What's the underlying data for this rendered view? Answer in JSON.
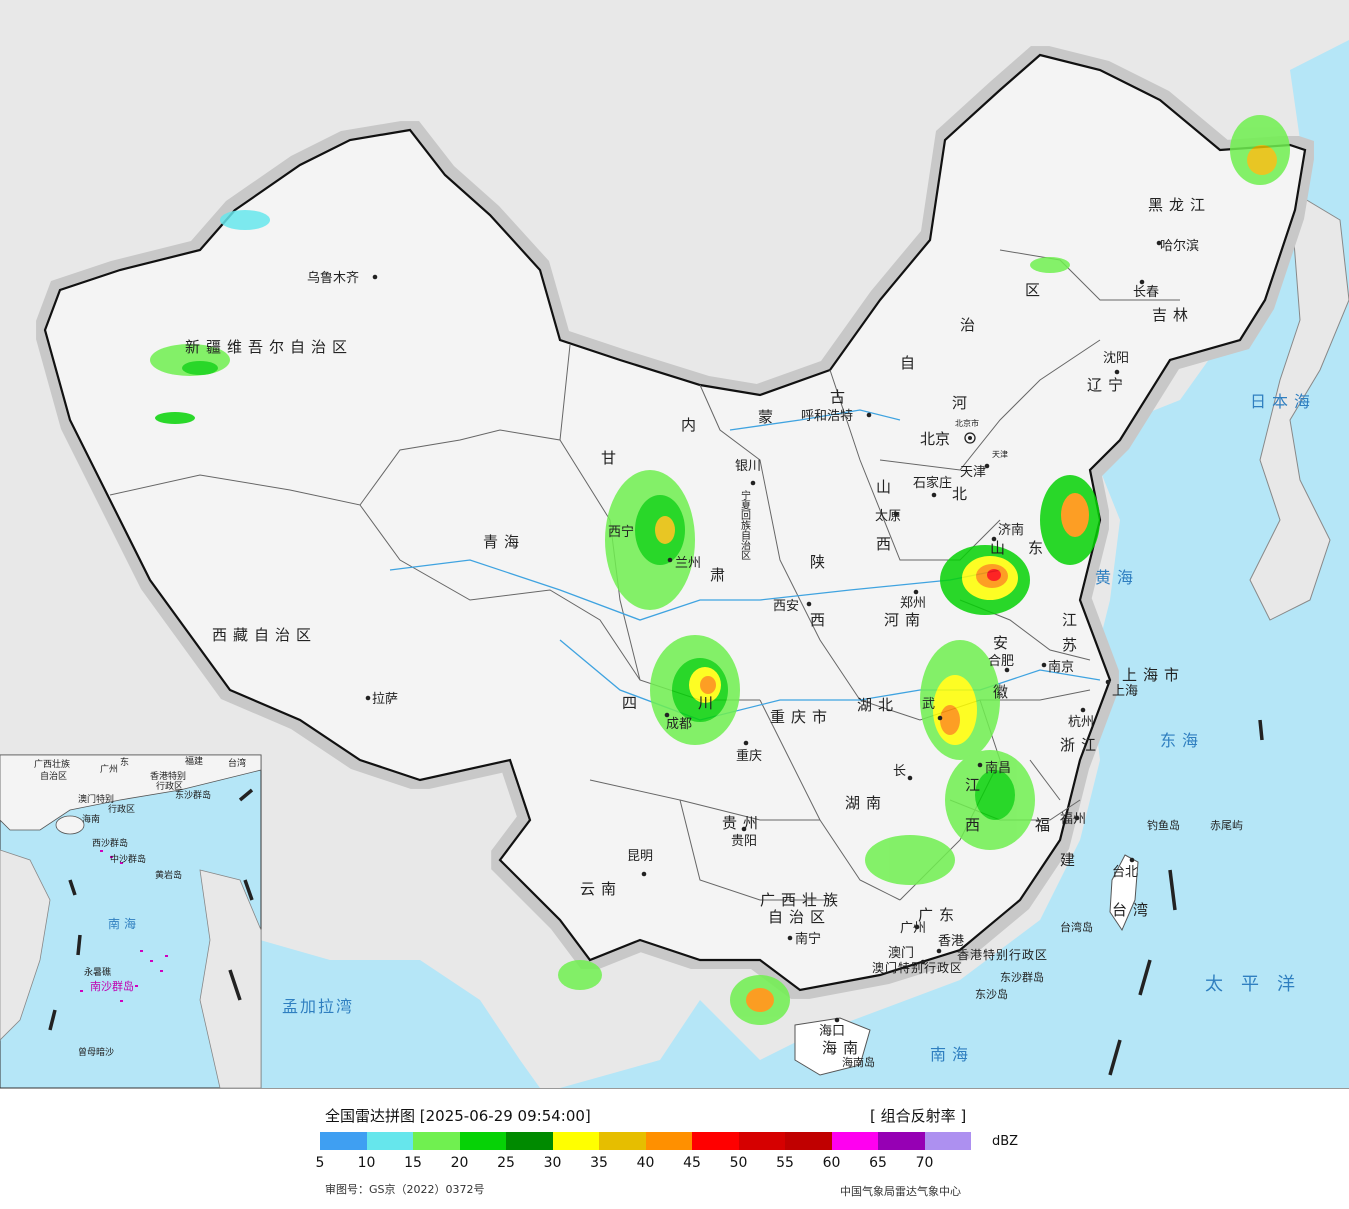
{
  "map": {
    "provinces": [
      {
        "key": "xinjiang",
        "name": "新疆维吾尔自治区"
      },
      {
        "key": "xizang",
        "name": "西藏自治区"
      },
      {
        "key": "qinghai",
        "name": "青海"
      },
      {
        "key": "gansu_1",
        "name": "甘"
      },
      {
        "key": "gansu_2",
        "name": "肃"
      },
      {
        "key": "neimenggu_1",
        "name": "内"
      },
      {
        "key": "neimenggu_2",
        "name": "蒙"
      },
      {
        "key": "neimenggu_3",
        "name": "古"
      },
      {
        "key": "neimenggu_4",
        "name": "自"
      },
      {
        "key": "neimenggu_5",
        "name": "治"
      },
      {
        "key": "neimenggu_6",
        "name": "区"
      },
      {
        "key": "heilongjiang",
        "name": "黑龙江"
      },
      {
        "key": "jilin",
        "name": "吉林"
      },
      {
        "key": "liaoning",
        "name": "辽宁"
      },
      {
        "key": "hebei_1",
        "name": "河"
      },
      {
        "key": "hebei_2",
        "name": "北"
      },
      {
        "key": "shanxi_1",
        "name": "山"
      },
      {
        "key": "shanxi_2",
        "name": "西"
      },
      {
        "key": "shaanxi_1",
        "name": "陕"
      },
      {
        "key": "shaanxi_2",
        "name": "西"
      },
      {
        "key": "ningxia",
        "name": "宁夏回族自治区"
      },
      {
        "key": "shandong_1",
        "name": "山"
      },
      {
        "key": "shandong_2",
        "name": "东"
      },
      {
        "key": "henan",
        "name": "河南"
      },
      {
        "key": "jiangsu_1",
        "name": "江"
      },
      {
        "key": "jiangsu_2",
        "name": "苏"
      },
      {
        "key": "anhui_1",
        "name": "安"
      },
      {
        "key": "anhui_2",
        "name": "徽"
      },
      {
        "key": "shanghai",
        "name": "上海市"
      },
      {
        "key": "zhejiang",
        "name": "浙江"
      },
      {
        "key": "sichuan_1",
        "name": "四"
      },
      {
        "key": "sichuan_2",
        "name": "川"
      },
      {
        "key": "chongqing",
        "name": "重庆市"
      },
      {
        "key": "hubei",
        "name": "湖北"
      },
      {
        "key": "hunan",
        "name": "湖南"
      },
      {
        "key": "jiangxi_1",
        "name": "江"
      },
      {
        "key": "jiangxi_2",
        "name": "西"
      },
      {
        "key": "fujian_1",
        "name": "福"
      },
      {
        "key": "fujian_2",
        "name": "建"
      },
      {
        "key": "guizhou",
        "name": "贵州"
      },
      {
        "key": "yunnan",
        "name": "云南"
      },
      {
        "key": "guangxi_1",
        "name": "广西壮族"
      },
      {
        "key": "guangxi_2",
        "name": "自治区"
      },
      {
        "key": "guangdong",
        "name": "广东"
      },
      {
        "key": "hainan",
        "name": "海南"
      },
      {
        "key": "taiwan",
        "name": "台湾"
      },
      {
        "key": "hongkong",
        "name": "香港特别行政区"
      },
      {
        "key": "macau",
        "name": "澳门特别行政区"
      }
    ],
    "cities": [
      {
        "key": "urumqi",
        "name": "乌鲁木齐"
      },
      {
        "key": "lhasa",
        "name": "拉萨"
      },
      {
        "key": "xining",
        "name": "西宁"
      },
      {
        "key": "lanzhou",
        "name": "兰州"
      },
      {
        "key": "yinchuan",
        "name": "银川"
      },
      {
        "key": "hohhot",
        "name": "呼和浩特"
      },
      {
        "key": "harbin",
        "name": "哈尔滨"
      },
      {
        "key": "changchun",
        "name": "长春"
      },
      {
        "key": "shenyang",
        "name": "沈阳"
      },
      {
        "key": "beijing",
        "name": "北京"
      },
      {
        "key": "beijing_city",
        "name": "北京市"
      },
      {
        "key": "tianjin",
        "name": "天津"
      },
      {
        "key": "tianjin_city",
        "name": "天津"
      },
      {
        "key": "shijiazhuang",
        "name": "石家庄"
      },
      {
        "key": "taiyuan",
        "name": "太原"
      },
      {
        "key": "jinan",
        "name": "济南"
      },
      {
        "key": "zhengzhou",
        "name": "郑州"
      },
      {
        "key": "xian",
        "name": "西安"
      },
      {
        "key": "hefei",
        "name": "合肥"
      },
      {
        "key": "nanjing",
        "name": "南京"
      },
      {
        "key": "shanghai",
        "name": "上海"
      },
      {
        "key": "hangzhou",
        "name": "杭州"
      },
      {
        "key": "wuhan",
        "name": "武"
      },
      {
        "key": "chengdu",
        "name": "成都"
      },
      {
        "key": "chongqing",
        "name": "重庆"
      },
      {
        "key": "changsha",
        "name": "长"
      },
      {
        "key": "nanchang",
        "name": "南昌"
      },
      {
        "key": "fuzhou",
        "name": "福州"
      },
      {
        "key": "guiyang",
        "name": "贵阳"
      },
      {
        "key": "kunming",
        "name": "昆明"
      },
      {
        "key": "nanning",
        "name": "南宁"
      },
      {
        "key": "guangzhou",
        "name": "广州"
      },
      {
        "key": "macau",
        "name": "澳门"
      },
      {
        "key": "hongkong",
        "name": "香港"
      },
      {
        "key": "haikou",
        "name": "海口"
      },
      {
        "key": "taibei",
        "name": "台北"
      }
    ],
    "seas": [
      {
        "key": "japan_sea",
        "name": "日本海"
      },
      {
        "key": "yellow_sea",
        "name": "黄海"
      },
      {
        "key": "east_sea",
        "name": "东海"
      },
      {
        "key": "pacific",
        "name": "太平洋"
      },
      {
        "key": "south_sea",
        "name": "南海"
      },
      {
        "key": "bengal",
        "name": "孟加拉湾"
      }
    ],
    "islands": [
      {
        "key": "diaoyu",
        "name": "钓鱼岛"
      },
      {
        "key": "chiwei",
        "name": "赤尾屿"
      },
      {
        "key": "taiwan_island",
        "name": "台湾岛"
      },
      {
        "key": "hainan_island",
        "name": "海南岛"
      },
      {
        "key": "dongsha",
        "name": "东沙群岛"
      },
      {
        "key": "dongsha_island",
        "name": "东沙岛"
      }
    ],
    "inset": {
      "labels": [
        {
          "key": "guangxi",
          "name": "广西壮族"
        },
        {
          "key": "guangxi_2",
          "name": "自治区"
        },
        {
          "key": "guangdong",
          "name": "广州"
        },
        {
          "key": "dong",
          "name": "东"
        },
        {
          "key": "fujian",
          "name": "福建"
        },
        {
          "key": "taiwan",
          "name": "台湾"
        },
        {
          "key": "hk",
          "name": "香港特别"
        },
        {
          "key": "hk2",
          "name": "行政区"
        },
        {
          "key": "macau",
          "name": "澳门特别"
        },
        {
          "key": "macau2",
          "name": "行政区"
        },
        {
          "key": "dongsha",
          "name": "东沙群岛"
        },
        {
          "key": "hainan",
          "name": "海南"
        },
        {
          "key": "xisha",
          "name": "西沙群岛"
        },
        {
          "key": "zhongsha",
          "name": "中沙群岛"
        },
        {
          "key": "huangyan",
          "name": "黄岩岛"
        },
        {
          "key": "south_sea",
          "name": "南海"
        },
        {
          "key": "nansha",
          "name": "南沙群岛"
        },
        {
          "key": "yongshu",
          "name": "永暑礁"
        },
        {
          "key": "zengmu",
          "name": "曾母暗沙"
        }
      ]
    }
  },
  "legend": {
    "title": "全国雷达拼图 [2025-06-29 09:54:00]",
    "product": "[ 组合反射率 ]",
    "unit": "dBZ",
    "colors": [
      "#3f9ff2",
      "#66e6ec",
      "#70f050",
      "#06d206",
      "#008a00",
      "#ffff00",
      "#e6be00",
      "#ff9000",
      "#ff0000",
      "#d60000",
      "#c00000",
      "#ff00f0",
      "#9600b4",
      "#ad90f0"
    ],
    "ticks": [
      "5",
      "10",
      "15",
      "20",
      "25",
      "30",
      "35",
      "40",
      "45",
      "50",
      "55",
      "60",
      "65",
      "70"
    ],
    "approval": "审图号：GS京（2022）0372号",
    "org": "中国气象局雷达气象中心"
  }
}
